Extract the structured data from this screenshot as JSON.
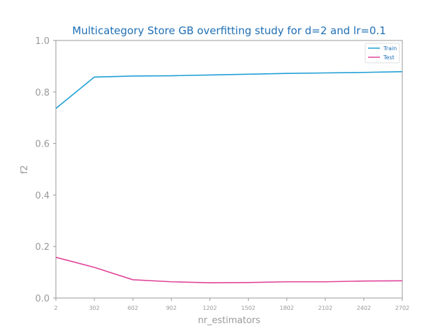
{
  "chart_data": {
    "type": "line",
    "title": "Multicategory Store GB overfitting study for d=2 and lr=0.1",
    "xlabel": "nr_estimators",
    "ylabel": "f2",
    "x": [
      2,
      302,
      602,
      902,
      1202,
      1502,
      1802,
      2102,
      2402,
      2702
    ],
    "x_ticks": [
      "2",
      "302",
      "602",
      "902",
      "1202",
      "1502",
      "1802",
      "2102",
      "2402",
      "2702"
    ],
    "y_ticks": [
      "0.0",
      "0.2",
      "0.4",
      "0.6",
      "0.8",
      "1.0"
    ],
    "xlim": [
      2,
      2702
    ],
    "ylim": [
      0,
      1
    ],
    "grid": false,
    "legend_position": "top-right",
    "series": [
      {
        "name": "Train",
        "color": "#1f9fd5",
        "values": [
          0.736,
          0.858,
          0.862,
          0.863,
          0.866,
          0.869,
          0.872,
          0.874,
          0.876,
          0.879
        ]
      },
      {
        "name": "Test",
        "color": "#e0449a",
        "values": [
          0.158,
          0.119,
          0.071,
          0.063,
          0.059,
          0.06,
          0.063,
          0.063,
          0.066,
          0.067
        ]
      }
    ]
  }
}
